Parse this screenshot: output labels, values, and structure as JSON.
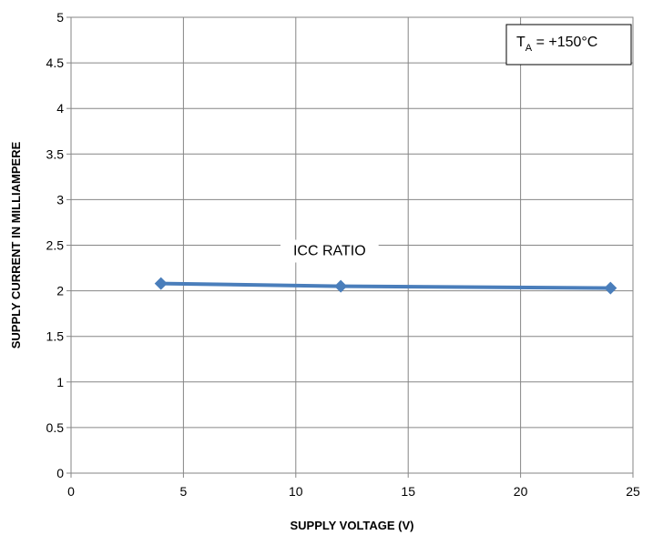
{
  "chart_data": {
    "type": "line",
    "xlabel": "SUPPLY VOLTAGE (V)",
    "ylabel": "SUPPLY CURRENT IN MILLIAMPERE",
    "xlim": [
      0,
      25
    ],
    "ylim": [
      0,
      5
    ],
    "x_ticks": [
      "0",
      "5",
      "10",
      "15",
      "20",
      "25"
    ],
    "y_ticks": [
      "0",
      "0.5",
      "1",
      "1.5",
      "2",
      "2.5",
      "3",
      "3.5",
      "4",
      "4.5",
      "5"
    ],
    "grid": true,
    "series": [
      {
        "name": "ICC RATIO",
        "color": "#4a7ebb",
        "marker": "diamond",
        "x": [
          4,
          12,
          24
        ],
        "y": [
          2.08,
          2.05,
          2.03
        ]
      }
    ],
    "annotation": {
      "prefix": "T",
      "subscript": "A",
      "suffix": " = +150°C",
      "position": "top-right"
    }
  }
}
